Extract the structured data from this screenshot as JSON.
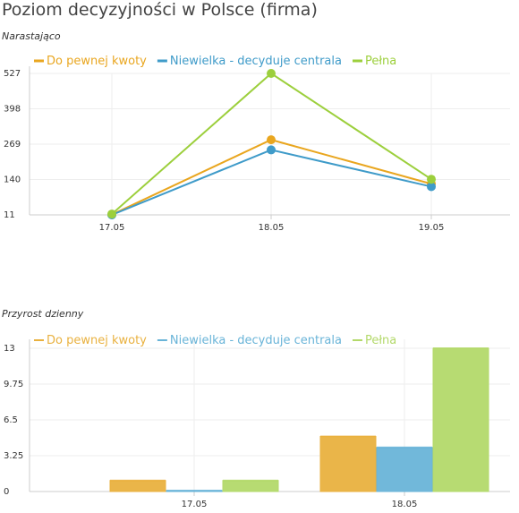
{
  "page": {
    "title": "Poziom decyzyjności w Polsce (firma)"
  },
  "colors": {
    "orange": "#e9a61f",
    "blue": "#3f9bc9",
    "green": "#9ccf3c",
    "grid": "#eeeeee",
    "axis": "#cccccc"
  },
  "chart_data": [
    {
      "type": "line",
      "subtitle": "Narastająco",
      "categories": [
        "17.05",
        "18.05",
        "19.05"
      ],
      "yticks": [
        11,
        140,
        269,
        398,
        527
      ],
      "ylim": [
        11,
        527
      ],
      "grid": true,
      "legend_position": "top",
      "series": [
        {
          "name": "Do pewnej kwoty",
          "color": "#e9a61f",
          "values": [
            12,
            285,
            124
          ]
        },
        {
          "name": "Niewielka - decyduje centrala",
          "color": "#3f9bc9",
          "values": [
            11,
            248,
            114
          ]
        },
        {
          "name": "Pełna",
          "color": "#9ccf3c",
          "values": [
            14,
            527,
            141
          ]
        }
      ]
    },
    {
      "type": "bar",
      "subtitle": "Przyrost dzienny",
      "categories": [
        "17.05",
        "18.05"
      ],
      "yticks": [
        "0",
        "3.25",
        "6.5",
        "9.75",
        "13"
      ],
      "ylim": [
        0,
        13
      ],
      "grid": true,
      "legend_position": "top",
      "series": [
        {
          "name": "Do pewnej kwoty",
          "color": "#e9b13f",
          "values": [
            1,
            5
          ]
        },
        {
          "name": "Niewielka - decyduje centrala",
          "color": "#69b4d8",
          "values": [
            0,
            4
          ]
        },
        {
          "name": "Pełna",
          "color": "#b3d96a",
          "values": [
            1,
            13
          ]
        }
      ]
    }
  ]
}
